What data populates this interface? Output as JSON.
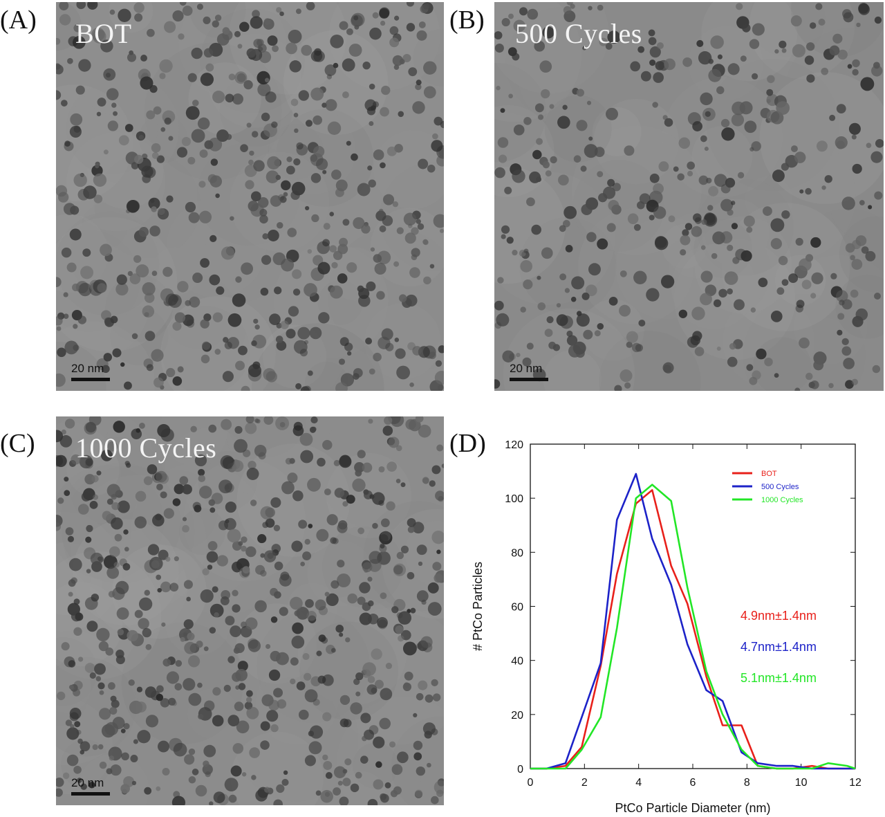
{
  "panels": [
    {
      "letter": "(A)",
      "title": "BOT",
      "scale_label": "20 nm"
    },
    {
      "letter": "(B)",
      "title": "500 Cycles",
      "scale_label": "20 nm"
    },
    {
      "letter": "(C)",
      "title": "1000 Cycles",
      "scale_label": "20 nm"
    },
    {
      "letter": "(D)"
    }
  ],
  "chart_data": {
    "type": "line",
    "title": "",
    "xlabel": "PtCo Particle Diameter (nm)",
    "ylabel": "# PtCo Particles",
    "xlim": [
      0,
      12
    ],
    "ylim": [
      0,
      120
    ],
    "xticks": [
      0,
      2,
      4,
      6,
      8,
      10,
      12
    ],
    "yticks": [
      0,
      20,
      40,
      60,
      80,
      100,
      120
    ],
    "grid": false,
    "legend_position": "top-right",
    "series": [
      {
        "name": "BOT",
        "color": "#e8201a",
        "annotation": "4.9nm±1.4nm",
        "x": [
          0,
          0.6,
          1.3,
          1.9,
          2.6,
          3.2,
          3.9,
          4.5,
          5.2,
          5.8,
          6.5,
          7.1,
          7.8,
          8.4,
          9.1,
          9.7,
          10.4,
          11.0,
          11.7,
          12
        ],
        "y": [
          0,
          0,
          1,
          8,
          38,
          72,
          98,
          103,
          75,
          61,
          34,
          16,
          16,
          1,
          0,
          0,
          1,
          0,
          0,
          0
        ]
      },
      {
        "name": "500 Cycles",
        "color": "#1c22c8",
        "annotation": "4.7nm±1.4nm",
        "x": [
          0,
          0.6,
          1.3,
          1.9,
          2.6,
          3.2,
          3.9,
          4.5,
          5.2,
          5.8,
          6.5,
          7.1,
          7.8,
          8.4,
          9.1,
          9.7,
          10.4,
          11.0,
          11.7,
          12
        ],
        "y": [
          0,
          0,
          2,
          19,
          39,
          92,
          109,
          85,
          68,
          46,
          29,
          25,
          6,
          2,
          1,
          1,
          0,
          0,
          0,
          0
        ]
      },
      {
        "name": "1000 Cycles",
        "color": "#22e626",
        "annotation": "5.1nm±1.4nm",
        "x": [
          0,
          0.6,
          1.3,
          1.9,
          2.6,
          3.2,
          3.9,
          4.5,
          5.2,
          5.8,
          6.5,
          7.1,
          7.8,
          8.4,
          9.1,
          9.7,
          10.4,
          11.0,
          11.7,
          12
        ],
        "y": [
          0,
          0,
          0,
          7,
          19,
          52,
          100,
          105,
          99,
          67,
          36,
          20,
          7,
          1,
          0,
          0,
          0,
          2,
          1,
          0
        ]
      }
    ]
  }
}
